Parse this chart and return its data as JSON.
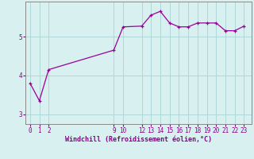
{
  "x": [
    0,
    1,
    2,
    9,
    10,
    12,
    13,
    14,
    15,
    16,
    17,
    18,
    19,
    20,
    21,
    22,
    23
  ],
  "y": [
    3.8,
    3.35,
    4.15,
    4.65,
    5.25,
    5.27,
    5.55,
    5.65,
    5.35,
    5.25,
    5.25,
    5.35,
    5.35,
    5.35,
    5.15,
    5.15,
    5.27
  ],
  "line_color": "#990099",
  "marker": "+",
  "marker_size": 3,
  "background_color": "#d8f0f0",
  "grid_color": "#b0d8d8",
  "xlabel": "Windchill (Refroidissement éolien,°C)",
  "xlabel_fontsize": 6,
  "yticks": [
    3,
    4,
    5
  ],
  "xticks": [
    0,
    1,
    2,
    9,
    10,
    12,
    13,
    14,
    15,
    16,
    17,
    18,
    19,
    20,
    21,
    22,
    23
  ],
  "xlim": [
    -0.5,
    23.8
  ],
  "ylim": [
    2.75,
    5.9
  ],
  "tick_fontsize": 5.5,
  "tick_color": "#880088",
  "axis_color": "#880088",
  "spine_color": "#888888"
}
